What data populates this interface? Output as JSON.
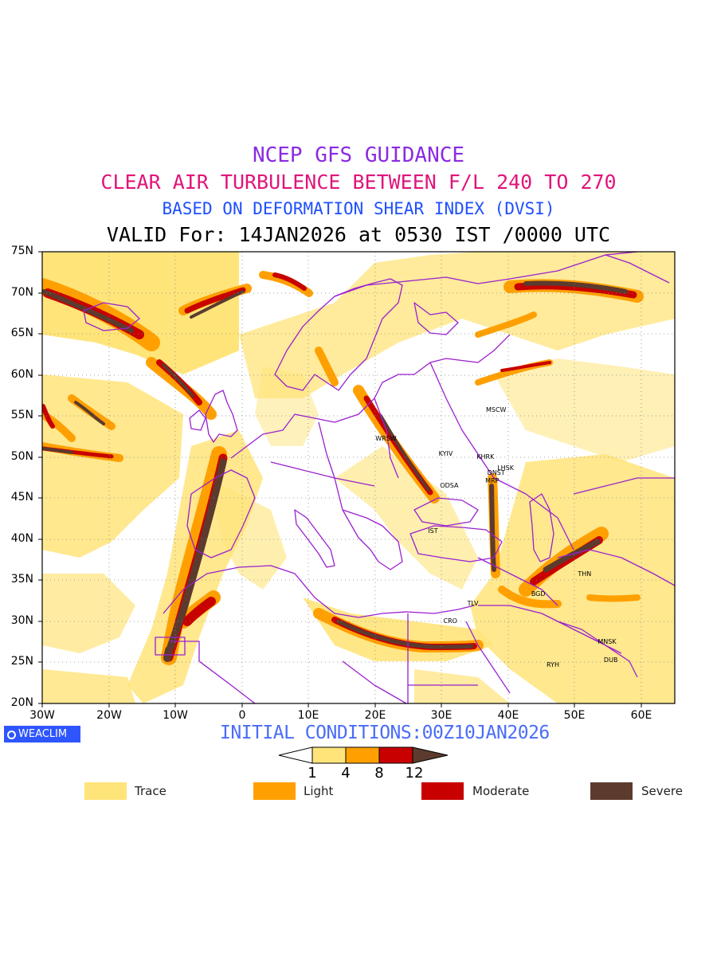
{
  "titles": {
    "line1": "NCEP GFS GUIDANCE",
    "line2": "CLEAR AIR TURBULENCE BETWEEN F/L 240 TO 270",
    "line3": "BASED ON DEFORMATION SHEAR INDEX (DVSI)",
    "line4": "VALID For: 14JAN2026 at 0530 IST /0000 UTC"
  },
  "axes": {
    "lat_labels": [
      "75N",
      "70N",
      "65N",
      "60N",
      "55N",
      "50N",
      "45N",
      "40N",
      "35N",
      "30N",
      "25N",
      "20N"
    ],
    "lon_labels": [
      "30W",
      "20W",
      "10W",
      "0",
      "10E",
      "20E",
      "30E",
      "40E",
      "50E",
      "60E"
    ]
  },
  "cities": [
    {
      "code": "MSCW",
      "lon": 37.6,
      "lat": 55.7
    },
    {
      "code": "WRSW",
      "lon": 21.0,
      "lat": 52.2
    },
    {
      "code": "KYIV",
      "lon": 30.5,
      "lat": 50.4
    },
    {
      "code": "KHRK",
      "lon": 36.2,
      "lat": 50.0
    },
    {
      "code": "LHSK",
      "lon": 39.3,
      "lat": 48.6
    },
    {
      "code": "DNST",
      "lon": 37.8,
      "lat": 48.0
    },
    {
      "code": "MRP",
      "lon": 37.5,
      "lat": 47.1
    },
    {
      "code": "ODSA",
      "lon": 30.7,
      "lat": 46.5
    },
    {
      "code": "IST",
      "lon": 28.9,
      "lat": 41.0
    },
    {
      "code": "THN",
      "lon": 51.4,
      "lat": 35.7
    },
    {
      "code": "BGD",
      "lon": 44.4,
      "lat": 33.3
    },
    {
      "code": "TLV",
      "lon": 34.8,
      "lat": 32.1
    },
    {
      "code": "CRO",
      "lon": 31.2,
      "lat": 30.0
    },
    {
      "code": "MNSK",
      "lon": 54.4,
      "lat": 27.5
    },
    {
      "code": "DUB",
      "lon": 55.3,
      "lat": 25.2
    },
    {
      "code": "RYH",
      "lon": 46.7,
      "lat": 24.7
    }
  ],
  "footer": {
    "brand": "WEACLIM",
    "brand_icon": "weaclim-logo-icon",
    "initial_conditions": "INITIAL CONDITIONS:00Z10JAN2026"
  },
  "colorbar": {
    "labels": [
      "1",
      "4",
      "8",
      "12"
    ],
    "colors": [
      "#ffe47a",
      "#ffa000",
      "#c80000",
      "#5c3b2e"
    ]
  },
  "legend": [
    {
      "label": "Trace",
      "color": "#ffe47a"
    },
    {
      "label": "Light",
      "color": "#ffa000"
    },
    {
      "label": "Moderate",
      "color": "#c80000"
    },
    {
      "label": "Severe",
      "color": "#5c3b2e"
    }
  ],
  "map_extent": {
    "lon": [
      -30,
      65
    ],
    "lat": [
      20,
      75
    ]
  }
}
